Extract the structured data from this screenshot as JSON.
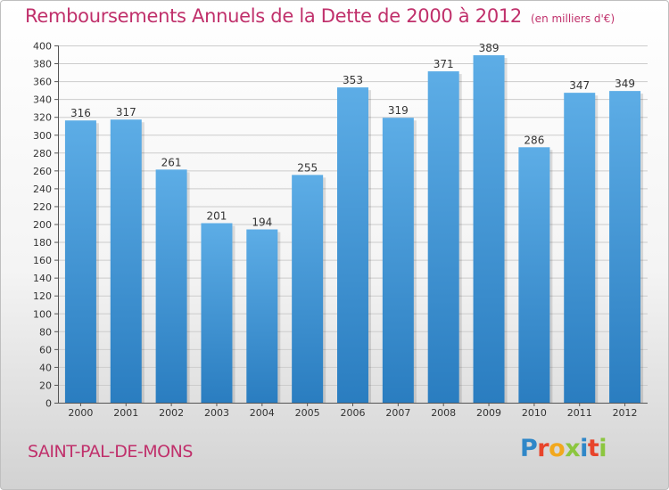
{
  "header": {
    "title": "Remboursements Annuels de la Dette de 2000 à 2012",
    "unit": "(en milliers d'€)"
  },
  "footer": {
    "commune": "SAINT-PAL-DE-MONS",
    "logo_letters": [
      "P",
      "r",
      "o",
      "x",
      "i",
      "t",
      "i"
    ],
    "logo_colors": [
      "#2f87c8",
      "#e8442b",
      "#f2a81d",
      "#8cc63f",
      "#2f87c8",
      "#e8442b",
      "#8cc63f"
    ]
  },
  "colors": {
    "title": "#c0306b",
    "bar_light": "#5dade6",
    "bar_dark": "#2a7dc0",
    "grid": "#cccccc"
  },
  "chart_data": {
    "type": "bar",
    "title": "Remboursements Annuels de la Dette de 2000 à 2012",
    "subtitle": "(en milliers d'€)",
    "xlabel": "",
    "ylabel": "",
    "categories": [
      "2000",
      "2001",
      "2002",
      "2003",
      "2004",
      "2005",
      "2006",
      "2007",
      "2008",
      "2009",
      "2010",
      "2011",
      "2012"
    ],
    "values": [
      316,
      317,
      261,
      201,
      194,
      255,
      353,
      319,
      371,
      389,
      286,
      347,
      349
    ],
    "ylim": [
      0,
      400
    ],
    "ytick_step": 20,
    "grid": true,
    "legend": "none"
  }
}
